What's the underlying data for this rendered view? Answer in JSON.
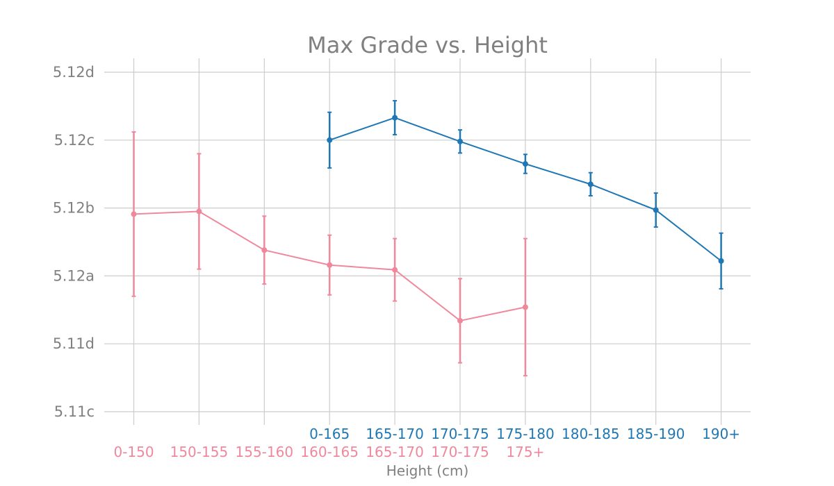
{
  "chart_data": {
    "type": "line",
    "title": "Max Grade vs. Height",
    "xlabel": "Height (cm)",
    "ylabel": "",
    "y_ticks": [
      "5.11c",
      "5.11d",
      "5.12a",
      "5.12b",
      "5.12c",
      "5.12d"
    ],
    "ylim": [
      0,
      5
    ],
    "x_positions": 10,
    "grid": true,
    "series": [
      {
        "color": "#1f77b4",
        "tick_labels": [
          "0-165",
          "165-170",
          "170-175",
          "175-180",
          "180-185",
          "185-190",
          "190+"
        ],
        "x_index": [
          3,
          4,
          5,
          6,
          7,
          8,
          9
        ],
        "y": [
          4.0,
          4.33,
          3.98,
          3.65,
          3.35,
          2.97,
          2.22
        ],
        "err": [
          0.41,
          0.25,
          0.17,
          0.14,
          0.17,
          0.25,
          0.41
        ]
      },
      {
        "color": "#f0889c",
        "tick_labels": [
          "0-150",
          "150-155",
          "155-160",
          "160-165",
          "165-170",
          "170-175",
          "175+"
        ],
        "x_index": [
          0,
          1,
          2,
          3,
          4,
          5,
          6
        ],
        "y": [
          2.91,
          2.95,
          2.38,
          2.16,
          2.09,
          1.34,
          1.54
        ],
        "err": [
          1.21,
          0.85,
          0.5,
          0.44,
          0.46,
          0.62,
          1.01
        ]
      }
    ]
  }
}
